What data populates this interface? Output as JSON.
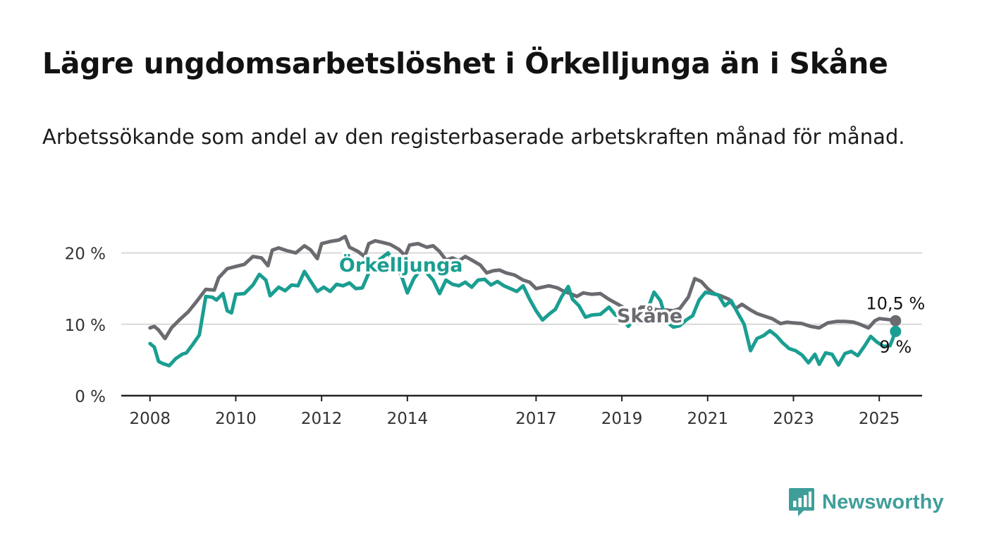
{
  "title": "Lägre ungdomsarbetslöshet i Örkelljunga än i Skåne",
  "subtitle": "Arbetssökande som andel av den registerbaserade arbetskraften månad för månad.",
  "brand": {
    "name": "Newsworthy",
    "color": "#3f9e9a"
  },
  "chart_data": {
    "type": "line",
    "title": "",
    "xlabel": "",
    "ylabel": "",
    "x_unit": "year",
    "xlim": [
      2007.33,
      2026.0
    ],
    "ylim": [
      0,
      25
    ],
    "x_ticks": [
      2008,
      2010,
      2012,
      2014,
      2017,
      2019,
      2021,
      2023,
      2025
    ],
    "x_tick_labels": [
      "2008",
      "2010",
      "2012",
      "2014",
      "2017",
      "2019",
      "2021",
      "2023",
      "2025"
    ],
    "y_ticks": [
      0,
      10,
      20
    ],
    "y_tick_labels": [
      "0 %",
      "10 %",
      "20 %"
    ],
    "grid": "horizontal",
    "legend": "inline labels",
    "series": [
      {
        "name": "Skåne",
        "color": "#6b6a70",
        "end_label": "10,5 %",
        "points": [
          [
            2008.0,
            9.5
          ],
          [
            2008.1,
            9.7
          ],
          [
            2008.2,
            9.2
          ],
          [
            2008.35,
            8.0
          ],
          [
            2008.5,
            9.5
          ],
          [
            2008.7,
            10.7
          ],
          [
            2008.9,
            11.8
          ],
          [
            2009.1,
            13.3
          ],
          [
            2009.3,
            14.9
          ],
          [
            2009.5,
            14.8
          ],
          [
            2009.6,
            16.5
          ],
          [
            2009.8,
            17.8
          ],
          [
            2010.0,
            18.1
          ],
          [
            2010.2,
            18.4
          ],
          [
            2010.4,
            19.5
          ],
          [
            2010.6,
            19.3
          ],
          [
            2010.75,
            18.2
          ],
          [
            2010.85,
            20.4
          ],
          [
            2011.0,
            20.7
          ],
          [
            2011.2,
            20.3
          ],
          [
            2011.4,
            20.0
          ],
          [
            2011.6,
            21.0
          ],
          [
            2011.75,
            20.4
          ],
          [
            2011.9,
            19.2
          ],
          [
            2012.0,
            21.3
          ],
          [
            2012.2,
            21.6
          ],
          [
            2012.4,
            21.8
          ],
          [
            2012.55,
            22.3
          ],
          [
            2012.65,
            20.8
          ],
          [
            2012.85,
            20.2
          ],
          [
            2013.0,
            19.5
          ],
          [
            2013.1,
            21.3
          ],
          [
            2013.25,
            21.7
          ],
          [
            2013.4,
            21.5
          ],
          [
            2013.6,
            21.2
          ],
          [
            2013.8,
            20.5
          ],
          [
            2013.95,
            19.6
          ],
          [
            2014.05,
            21.1
          ],
          [
            2014.25,
            21.3
          ],
          [
            2014.45,
            20.8
          ],
          [
            2014.6,
            21.0
          ],
          [
            2014.75,
            20.2
          ],
          [
            2014.9,
            19.0
          ],
          [
            2015.05,
            19.3
          ],
          [
            2015.2,
            18.9
          ],
          [
            2015.35,
            19.5
          ],
          [
            2015.5,
            19.0
          ],
          [
            2015.7,
            18.3
          ],
          [
            2015.85,
            17.2
          ],
          [
            2016.0,
            17.5
          ],
          [
            2016.15,
            17.6
          ],
          [
            2016.3,
            17.2
          ],
          [
            2016.5,
            16.9
          ],
          [
            2016.7,
            16.2
          ],
          [
            2016.85,
            15.9
          ],
          [
            2017.0,
            15.0
          ],
          [
            2017.15,
            15.2
          ],
          [
            2017.3,
            15.4
          ],
          [
            2017.5,
            15.1
          ],
          [
            2017.65,
            14.6
          ],
          [
            2017.8,
            14.3
          ],
          [
            2017.95,
            13.9
          ],
          [
            2018.1,
            14.4
          ],
          [
            2018.3,
            14.2
          ],
          [
            2018.5,
            14.3
          ],
          [
            2018.7,
            13.5
          ],
          [
            2018.85,
            13.0
          ],
          [
            2019.0,
            12.5
          ],
          [
            2019.15,
            11.8
          ],
          [
            2019.3,
            11.5
          ],
          [
            2019.45,
            12.4
          ],
          [
            2019.6,
            12.4
          ],
          [
            2019.75,
            12.1
          ],
          [
            2019.9,
            12.0
          ],
          [
            2020.05,
            12.0
          ],
          [
            2020.2,
            11.9
          ],
          [
            2020.35,
            12.2
          ],
          [
            2020.55,
            13.8
          ],
          [
            2020.7,
            16.4
          ],
          [
            2020.85,
            16.0
          ],
          [
            2021.0,
            15.0
          ],
          [
            2021.15,
            14.3
          ],
          [
            2021.3,
            14.0
          ],
          [
            2021.5,
            13.5
          ],
          [
            2021.65,
            12.2
          ],
          [
            2021.8,
            12.8
          ],
          [
            2022.0,
            12.0
          ],
          [
            2022.15,
            11.5
          ],
          [
            2022.3,
            11.2
          ],
          [
            2022.5,
            10.8
          ],
          [
            2022.7,
            10.1
          ],
          [
            2022.85,
            10.3
          ],
          [
            2023.0,
            10.2
          ],
          [
            2023.2,
            10.1
          ],
          [
            2023.4,
            9.7
          ],
          [
            2023.6,
            9.5
          ],
          [
            2023.8,
            10.2
          ],
          [
            2024.0,
            10.4
          ],
          [
            2024.2,
            10.4
          ],
          [
            2024.4,
            10.3
          ],
          [
            2024.55,
            10.0
          ],
          [
            2024.75,
            9.5
          ],
          [
            2024.9,
            10.5
          ],
          [
            2025.0,
            10.8
          ],
          [
            2025.15,
            10.7
          ],
          [
            2025.3,
            10.6
          ],
          [
            2025.38,
            10.5
          ]
        ]
      },
      {
        "name": "Örkelljunga",
        "color": "#1a9e91",
        "end_label": "9 %",
        "points": [
          [
            2008.0,
            7.3
          ],
          [
            2008.1,
            6.8
          ],
          [
            2008.2,
            4.8
          ],
          [
            2008.3,
            4.5
          ],
          [
            2008.45,
            4.2
          ],
          [
            2008.6,
            5.2
          ],
          [
            2008.75,
            5.8
          ],
          [
            2008.85,
            6.0
          ],
          [
            2009.0,
            7.2
          ],
          [
            2009.15,
            8.5
          ],
          [
            2009.3,
            13.9
          ],
          [
            2009.45,
            13.8
          ],
          [
            2009.55,
            13.4
          ],
          [
            2009.7,
            14.3
          ],
          [
            2009.8,
            11.9
          ],
          [
            2009.9,
            11.6
          ],
          [
            2010.0,
            14.2
          ],
          [
            2010.2,
            14.3
          ],
          [
            2010.4,
            15.5
          ],
          [
            2010.55,
            17.0
          ],
          [
            2010.7,
            16.2
          ],
          [
            2010.8,
            14.0
          ],
          [
            2011.0,
            15.2
          ],
          [
            2011.15,
            14.7
          ],
          [
            2011.3,
            15.5
          ],
          [
            2011.45,
            15.4
          ],
          [
            2011.6,
            17.4
          ],
          [
            2011.75,
            16.0
          ],
          [
            2011.9,
            14.6
          ],
          [
            2012.05,
            15.2
          ],
          [
            2012.2,
            14.6
          ],
          [
            2012.35,
            15.6
          ],
          [
            2012.5,
            15.4
          ],
          [
            2012.65,
            15.8
          ],
          [
            2012.8,
            15.0
          ],
          [
            2012.95,
            15.1
          ],
          [
            2013.1,
            17.2
          ],
          [
            2013.25,
            18.6
          ],
          [
            2013.4,
            19.3
          ],
          [
            2013.55,
            20.0
          ],
          [
            2013.7,
            18.5
          ],
          [
            2013.85,
            17.0
          ],
          [
            2014.0,
            14.4
          ],
          [
            2014.15,
            16.4
          ],
          [
            2014.3,
            17.6
          ],
          [
            2014.45,
            17.2
          ],
          [
            2014.6,
            16.2
          ],
          [
            2014.75,
            14.3
          ],
          [
            2014.9,
            16.2
          ],
          [
            2015.05,
            15.6
          ],
          [
            2015.2,
            15.4
          ],
          [
            2015.35,
            15.9
          ],
          [
            2015.5,
            15.2
          ],
          [
            2015.65,
            16.2
          ],
          [
            2015.8,
            16.3
          ],
          [
            2015.95,
            15.5
          ],
          [
            2016.1,
            16.0
          ],
          [
            2016.25,
            15.4
          ],
          [
            2016.4,
            15.0
          ],
          [
            2016.55,
            14.6
          ],
          [
            2016.7,
            15.4
          ],
          [
            2016.85,
            13.5
          ],
          [
            2017.0,
            11.9
          ],
          [
            2017.15,
            10.6
          ],
          [
            2017.3,
            11.4
          ],
          [
            2017.45,
            12.1
          ],
          [
            2017.6,
            13.9
          ],
          [
            2017.75,
            15.3
          ],
          [
            2017.85,
            13.5
          ],
          [
            2018.0,
            12.6
          ],
          [
            2018.15,
            11.0
          ],
          [
            2018.3,
            11.3
          ],
          [
            2018.5,
            11.4
          ],
          [
            2018.7,
            12.4
          ],
          [
            2018.85,
            11.3
          ],
          [
            2019.0,
            10.9
          ],
          [
            2019.15,
            9.7
          ],
          [
            2019.3,
            10.8
          ],
          [
            2019.45,
            10.3
          ],
          [
            2019.6,
            12.1
          ],
          [
            2019.75,
            14.5
          ],
          [
            2019.9,
            13.3
          ],
          [
            2020.05,
            10.3
          ],
          [
            2020.2,
            9.6
          ],
          [
            2020.35,
            9.8
          ],
          [
            2020.5,
            10.6
          ],
          [
            2020.65,
            11.2
          ],
          [
            2020.8,
            13.4
          ],
          [
            2020.95,
            14.5
          ],
          [
            2021.1,
            14.3
          ],
          [
            2021.25,
            14.1
          ],
          [
            2021.4,
            12.6
          ],
          [
            2021.55,
            13.3
          ],
          [
            2021.7,
            11.6
          ],
          [
            2021.85,
            10.0
          ],
          [
            2022.0,
            6.3
          ],
          [
            2022.15,
            8.0
          ],
          [
            2022.3,
            8.4
          ],
          [
            2022.45,
            9.1
          ],
          [
            2022.6,
            8.4
          ],
          [
            2022.75,
            7.4
          ],
          [
            2022.9,
            6.6
          ],
          [
            2023.05,
            6.3
          ],
          [
            2023.2,
            5.7
          ],
          [
            2023.35,
            4.6
          ],
          [
            2023.5,
            5.8
          ],
          [
            2023.6,
            4.4
          ],
          [
            2023.75,
            6.0
          ],
          [
            2023.9,
            5.8
          ],
          [
            2024.05,
            4.3
          ],
          [
            2024.2,
            5.9
          ],
          [
            2024.35,
            6.2
          ],
          [
            2024.5,
            5.6
          ],
          [
            2024.65,
            6.9
          ],
          [
            2024.8,
            8.3
          ],
          [
            2024.95,
            7.5
          ],
          [
            2025.1,
            6.9
          ],
          [
            2025.25,
            7.0
          ],
          [
            2025.38,
            9.0
          ]
        ]
      }
    ]
  }
}
